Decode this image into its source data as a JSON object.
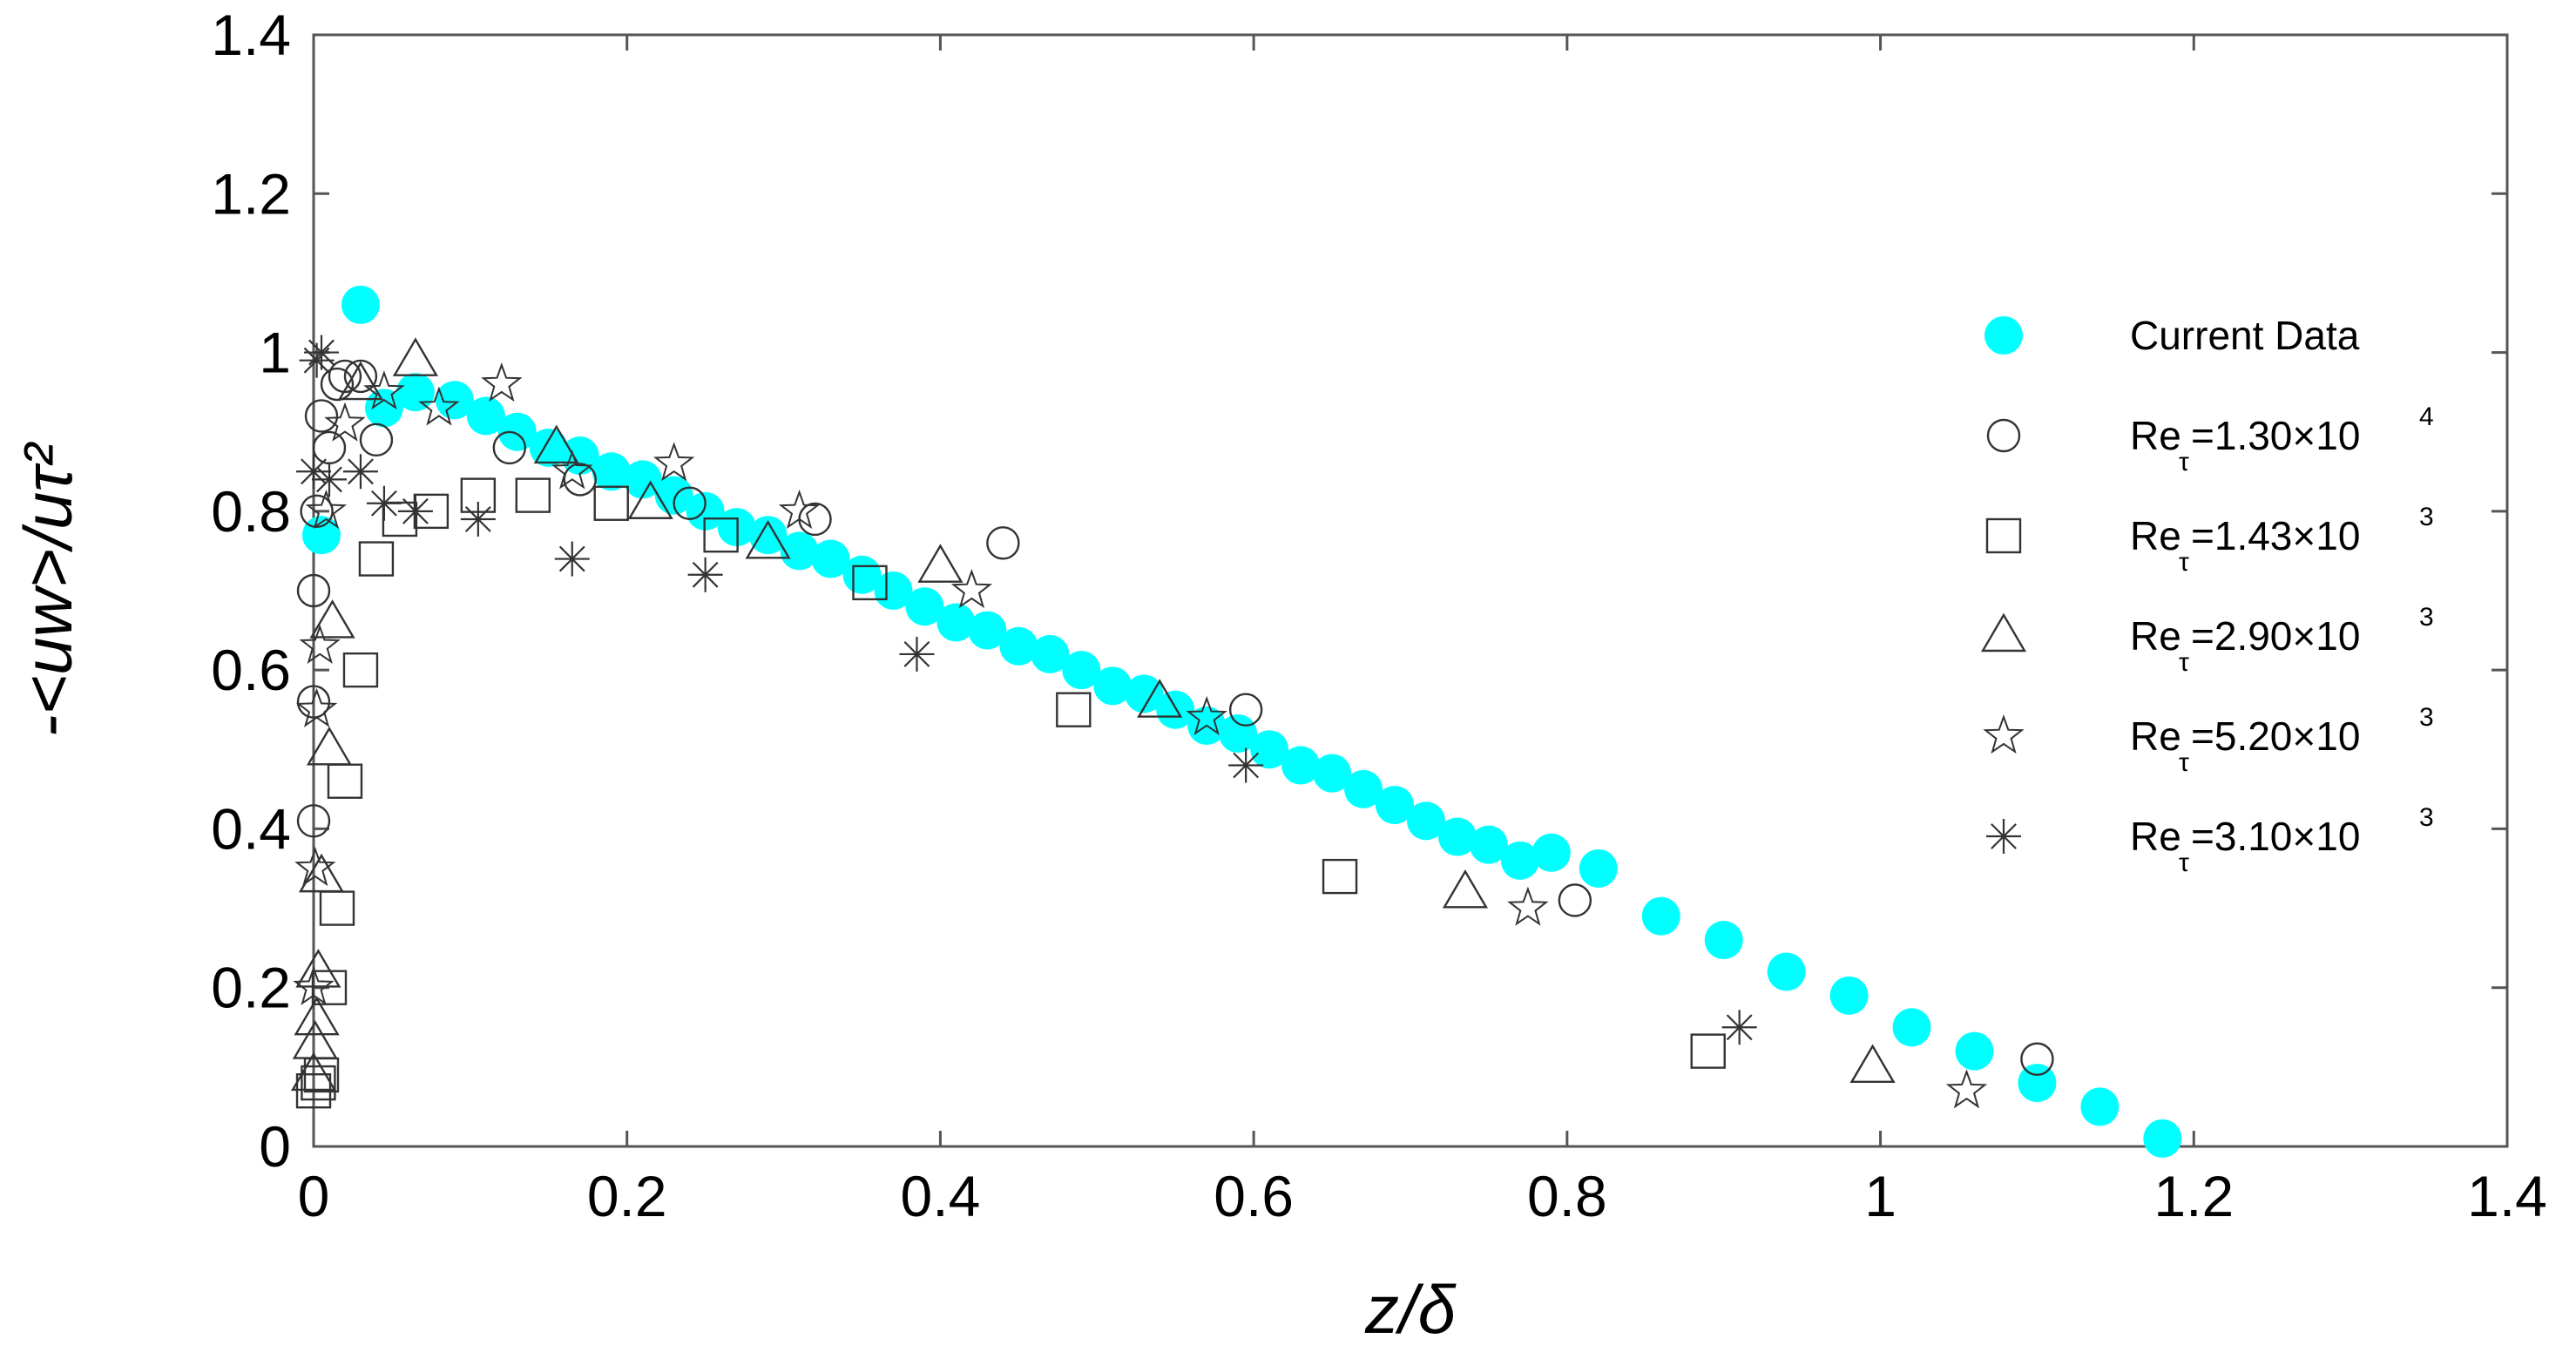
{
  "chart_data": {
    "type": "scatter",
    "xlabel": "z/δ",
    "ylabel": "-<uw>/uτ²",
    "xlim": [
      0,
      1.4
    ],
    "ylim": [
      0,
      1.4
    ],
    "x_ticks": [
      "0",
      "0.2",
      "0.4",
      "0.6",
      "0.8",
      "1",
      "1.2",
      "1.4"
    ],
    "y_ticks": [
      "0",
      "0.2",
      "0.4",
      "0.6",
      "0.8",
      "1",
      "1.2",
      "1.4"
    ],
    "grid": false,
    "legend_position": "right",
    "series": [
      {
        "name": "Current Data",
        "marker": "filled-circle",
        "color": "#00FFFF",
        "points": [
          [
            0.005,
            0.77
          ],
          [
            0.03,
            1.06
          ],
          [
            0.045,
            0.93
          ],
          [
            0.065,
            0.95
          ],
          [
            0.09,
            0.94
          ],
          [
            0.11,
            0.92
          ],
          [
            0.13,
            0.9
          ],
          [
            0.15,
            0.88
          ],
          [
            0.17,
            0.87
          ],
          [
            0.19,
            0.85
          ],
          [
            0.21,
            0.84
          ],
          [
            0.23,
            0.82
          ],
          [
            0.25,
            0.8
          ],
          [
            0.27,
            0.78
          ],
          [
            0.29,
            0.77
          ],
          [
            0.31,
            0.75
          ],
          [
            0.33,
            0.74
          ],
          [
            0.35,
            0.72
          ],
          [
            0.37,
            0.7
          ],
          [
            0.39,
            0.68
          ],
          [
            0.41,
            0.66
          ],
          [
            0.43,
            0.65
          ],
          [
            0.45,
            0.63
          ],
          [
            0.47,
            0.62
          ],
          [
            0.49,
            0.6
          ],
          [
            0.51,
            0.58
          ],
          [
            0.53,
            0.57
          ],
          [
            0.55,
            0.55
          ],
          [
            0.57,
            0.53
          ],
          [
            0.59,
            0.52
          ],
          [
            0.61,
            0.5
          ],
          [
            0.63,
            0.48
          ],
          [
            0.65,
            0.47
          ],
          [
            0.67,
            0.45
          ],
          [
            0.69,
            0.43
          ],
          [
            0.71,
            0.41
          ],
          [
            0.73,
            0.39
          ],
          [
            0.75,
            0.38
          ],
          [
            0.77,
            0.36
          ],
          [
            0.79,
            0.37
          ],
          [
            0.82,
            0.35
          ],
          [
            0.86,
            0.29
          ],
          [
            0.9,
            0.26
          ],
          [
            0.94,
            0.22
          ],
          [
            0.98,
            0.19
          ],
          [
            1.02,
            0.15
          ],
          [
            1.06,
            0.12
          ],
          [
            1.1,
            0.08
          ],
          [
            1.14,
            0.05
          ],
          [
            1.18,
            0.01
          ]
        ]
      },
      {
        "name": "Reτ=1.30×10⁴",
        "name_main": "Re",
        "name_sub": "τ",
        "name_value": "=1.30×10",
        "name_exp": "4",
        "marker": "circle",
        "points": [
          [
            0.0,
            0.7
          ],
          [
            0.0,
            0.56
          ],
          [
            0.0,
            0.41
          ],
          [
            0.002,
            0.8
          ],
          [
            0.005,
            0.92
          ],
          [
            0.01,
            0.88
          ],
          [
            0.015,
            0.96
          ],
          [
            0.02,
            0.97
          ],
          [
            0.03,
            0.97
          ],
          [
            0.04,
            0.89
          ],
          [
            0.125,
            0.88
          ],
          [
            0.17,
            0.84
          ],
          [
            0.24,
            0.81
          ],
          [
            0.32,
            0.79
          ],
          [
            0.44,
            0.76
          ],
          [
            0.595,
            0.55
          ],
          [
            0.805,
            0.31
          ],
          [
            1.1,
            0.11
          ]
        ]
      },
      {
        "name": "Reτ=1.43×10³",
        "name_main": "Re",
        "name_sub": "τ",
        "name_value": "=1.43×10",
        "name_exp": "3",
        "marker": "square",
        "points": [
          [
            0.0,
            0.07
          ],
          [
            0.003,
            0.08
          ],
          [
            0.005,
            0.09
          ],
          [
            0.01,
            0.2
          ],
          [
            0.015,
            0.3
          ],
          [
            0.02,
            0.46
          ],
          [
            0.03,
            0.6
          ],
          [
            0.04,
            0.74
          ],
          [
            0.055,
            0.79
          ],
          [
            0.075,
            0.8
          ],
          [
            0.105,
            0.82
          ],
          [
            0.14,
            0.82
          ],
          [
            0.19,
            0.81
          ],
          [
            0.26,
            0.77
          ],
          [
            0.355,
            0.71
          ],
          [
            0.485,
            0.55
          ],
          [
            0.655,
            0.34
          ],
          [
            0.89,
            0.12
          ]
        ]
      },
      {
        "name": "Reτ=2.90×10³",
        "name_main": "Re",
        "name_sub": "τ",
        "name_value": "=2.90×10",
        "name_exp": "3",
        "marker": "triangle",
        "points": [
          [
            0.0,
            0.09
          ],
          [
            0.001,
            0.13
          ],
          [
            0.002,
            0.16
          ],
          [
            0.003,
            0.22
          ],
          [
            0.005,
            0.34
          ],
          [
            0.01,
            0.5
          ],
          [
            0.012,
            0.66
          ],
          [
            0.03,
            0.96
          ],
          [
            0.065,
            0.99
          ],
          [
            0.155,
            0.88
          ],
          [
            0.215,
            0.81
          ],
          [
            0.29,
            0.76
          ],
          [
            0.4,
            0.73
          ],
          [
            0.54,
            0.56
          ],
          [
            0.735,
            0.32
          ],
          [
            0.995,
            0.1
          ]
        ]
      },
      {
        "name": "Reτ=5.20×10³",
        "name_main": "Re",
        "name_sub": "τ",
        "name_value": "=5.20×10",
        "name_exp": "3",
        "marker": "star",
        "points": [
          [
            0.0,
            0.2
          ],
          [
            0.001,
            0.35
          ],
          [
            0.002,
            0.55
          ],
          [
            0.004,
            0.63
          ],
          [
            0.008,
            0.8
          ],
          [
            0.02,
            0.91
          ],
          [
            0.045,
            0.95
          ],
          [
            0.08,
            0.93
          ],
          [
            0.12,
            0.96
          ],
          [
            0.165,
            0.85
          ],
          [
            0.23,
            0.86
          ],
          [
            0.31,
            0.8
          ],
          [
            0.42,
            0.7
          ],
          [
            0.57,
            0.54
          ],
          [
            0.775,
            0.3
          ],
          [
            1.055,
            0.07
          ]
        ]
      },
      {
        "name": "Reτ=3.10×10³",
        "name_main": "Re",
        "name_sub": "τ",
        "name_value": "=3.10×10",
        "name_exp": "3",
        "marker": "asterisk",
        "points": [
          [
            0.0,
            0.85
          ],
          [
            0.002,
            0.99
          ],
          [
            0.005,
            1.0
          ],
          [
            0.01,
            0.84
          ],
          [
            0.03,
            0.85
          ],
          [
            0.045,
            0.81
          ],
          [
            0.065,
            0.8
          ],
          [
            0.105,
            0.79
          ],
          [
            0.165,
            0.74
          ],
          [
            0.25,
            0.72
          ],
          [
            0.385,
            0.62
          ],
          [
            0.595,
            0.48
          ],
          [
            0.91,
            0.15
          ]
        ]
      }
    ]
  }
}
